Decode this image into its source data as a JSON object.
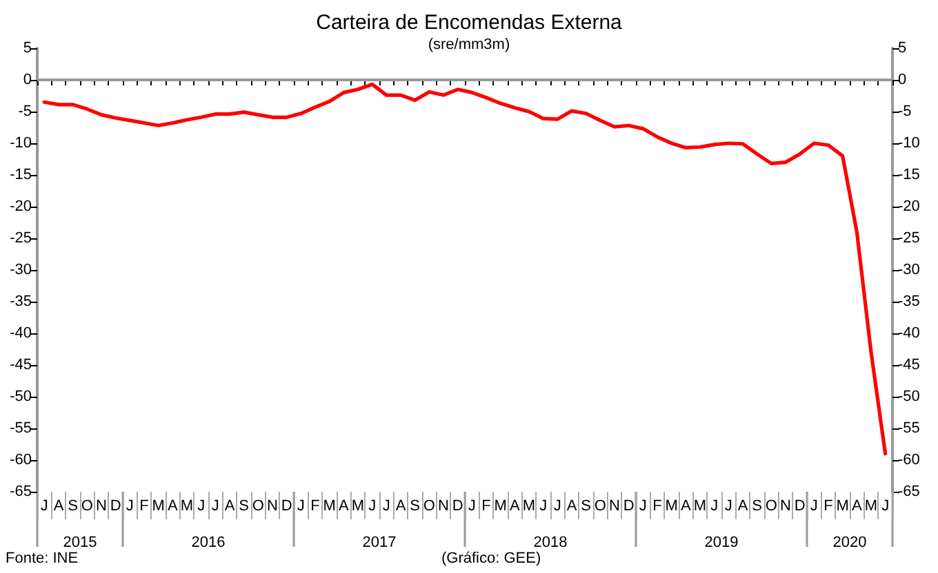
{
  "chart_data": {
    "type": "line",
    "title": "Carteira de Encomendas Externa",
    "subtitle": "(sre/mm3m)",
    "categories": [
      "J",
      "A",
      "S",
      "O",
      "N",
      "D",
      "J",
      "F",
      "M",
      "A",
      "M",
      "J",
      "J",
      "A",
      "S",
      "O",
      "N",
      "D",
      "J",
      "F",
      "M",
      "A",
      "M",
      "J",
      "J",
      "A",
      "S",
      "O",
      "N",
      "D",
      "J",
      "F",
      "M",
      "A",
      "M",
      "J",
      "J",
      "A",
      "S",
      "O",
      "N",
      "D",
      "J",
      "F",
      "M",
      "A",
      "M",
      "J",
      "J",
      "A",
      "S",
      "O",
      "N",
      "D",
      "J",
      "F",
      "M",
      "A",
      "M",
      "J"
    ],
    "series": [
      {
        "color": "#ff0000",
        "values": [
          -3.5,
          -3.9,
          -3.9,
          -4.6,
          -5.5,
          -6.0,
          -6.4,
          -6.8,
          -7.2,
          -6.8,
          -6.3,
          -5.9,
          -5.4,
          -5.4,
          -5.1,
          -5.5,
          -5.9,
          -5.9,
          -5.3,
          -4.3,
          -3.4,
          -2.0,
          -1.5,
          -0.7,
          -2.4,
          -2.4,
          -3.2,
          -1.9,
          -2.4,
          -1.5,
          -2.0,
          -2.8,
          -3.7,
          -4.4,
          -5.0,
          -6.1,
          -6.2,
          -4.9,
          -5.3,
          -6.4,
          -7.4,
          -7.2,
          -7.7,
          -9.0,
          -10.0,
          -10.7,
          -10.6,
          -10.2,
          -10.0,
          -10.1,
          -11.7,
          -13.2,
          -13.0,
          -11.7,
          -10.0,
          -10.3,
          -12.0,
          -24.0,
          -43.0,
          -59.0
        ]
      }
    ],
    "ylim": [
      -65,
      5
    ],
    "yticks": [
      5,
      0,
      -5,
      -10,
      -15,
      -20,
      -25,
      -30,
      -35,
      -40,
      -45,
      -50,
      -55,
      -60,
      -65
    ],
    "y2lim": [
      -65,
      5
    ],
    "y2ticks": [
      5,
      0,
      -5,
      -10,
      -15,
      -20,
      -25,
      -30,
      -35,
      -40,
      -45,
      -50,
      -55,
      -60,
      -65
    ],
    "grid": false,
    "marker": "none",
    "line_style": "solid",
    "ref_lines": [
      {
        "axis": "y",
        "value": 0,
        "color": "#999999"
      }
    ],
    "annotations": [
      "Fonte: INE",
      "(Gráfico: GEE)",
      {
        "text": "2015"
      },
      {
        "text": "2016"
      },
      {
        "text": "2017"
      },
      {
        "text": "2018"
      },
      {
        "text": "2019"
      },
      {
        "text": "2020"
      }
    ]
  }
}
